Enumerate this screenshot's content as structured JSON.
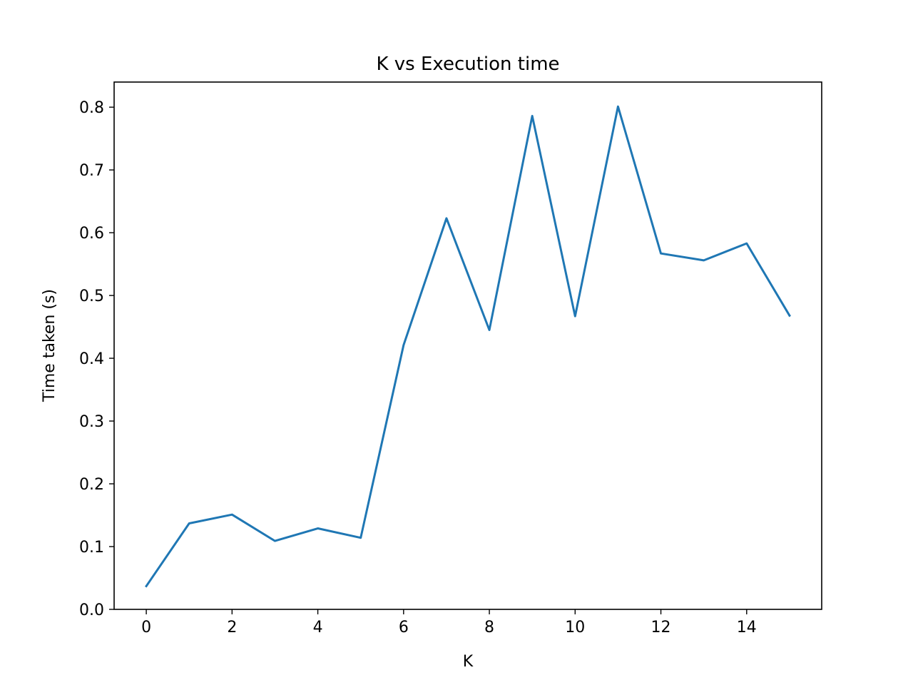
{
  "chart_data": {
    "type": "line",
    "title": "K vs Execution time",
    "xlabel": "K",
    "ylabel": "Time taken (s)",
    "xlim": [
      -0.75,
      15.75
    ],
    "ylim": [
      0.0,
      0.84
    ],
    "xticks": [
      0,
      2,
      4,
      6,
      8,
      10,
      12,
      14
    ],
    "xtick_labels": [
      "0",
      "2",
      "4",
      "6",
      "8",
      "10",
      "12",
      "14"
    ],
    "yticks": [
      0.0,
      0.1,
      0.2,
      0.3,
      0.4,
      0.5,
      0.6,
      0.7,
      0.8
    ],
    "ytick_labels": [
      "0.0",
      "0.1",
      "0.2",
      "0.3",
      "0.4",
      "0.5",
      "0.6",
      "0.7",
      "0.8"
    ],
    "grid": false,
    "series": [
      {
        "color": "#1f77b4",
        "x": [
          0,
          1,
          2,
          3,
          4,
          5,
          6,
          7,
          8,
          9,
          10,
          11,
          12,
          13,
          14,
          15
        ],
        "y": [
          0.037,
          0.137,
          0.151,
          0.109,
          0.129,
          0.114,
          0.421,
          0.623,
          0.445,
          0.786,
          0.467,
          0.801,
          0.567,
          0.556,
          0.583,
          0.468
        ]
      }
    ]
  }
}
